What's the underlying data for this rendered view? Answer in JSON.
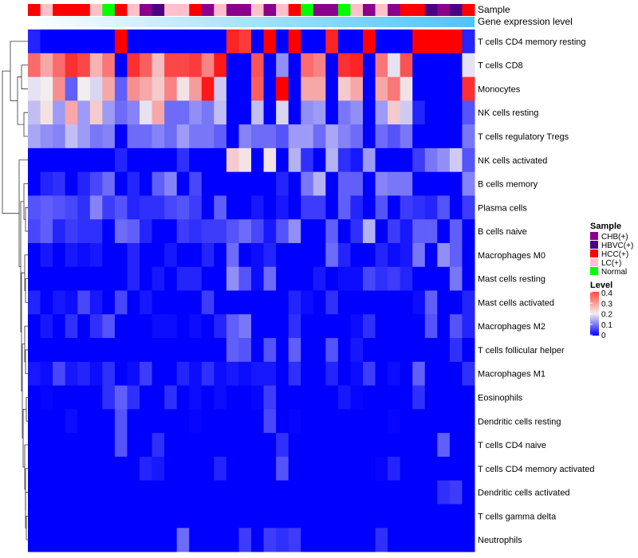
{
  "chart_data": {
    "type": "heatmap",
    "annotations": {
      "sample_label": "Sample",
      "gene_label": "Gene expression level",
      "samples": [
        "HCC(+)",
        "LC(+)",
        "HCC(+)",
        "HCC(+)",
        "HCC(+)",
        "LC(+)",
        "Normal",
        "HCC(+)",
        "LC(+)",
        "CHB(+)",
        "HBVC(+)",
        "LC(+)",
        "LC(+)",
        "HCC(+)",
        "CHB(+)",
        "LC(+)",
        "CHB(+)",
        "CHB(+)",
        "LC(+)",
        "CHB(+)",
        "LC(+)",
        "HCC(+)",
        "Normal",
        "CHB(+)",
        "CHB(+)",
        "Normal",
        "LC(+)",
        "CHB(+)",
        "LC(+)",
        "CHB(+)",
        "HCC(+)",
        "HCC(+)",
        "HBVC(+)",
        "CHB(+)",
        "HBVC(+)",
        "HCC(+)"
      ]
    },
    "rows": [
      "T cells CD4 memory resting",
      "T cells CD8",
      "Monocytes",
      "NK cells resting",
      "T cells regulatory  Tregs",
      "NK cells activated",
      "B cells memory",
      "Plasma cells",
      "B cells naive",
      "Macrophages M0",
      "Mast cells resting",
      "Mast cells activated",
      "Macrophages M2",
      "T cells follicular helper",
      "Macrophages M1",
      "Eosinophils",
      "Dendritic cells resting",
      "T cells CD4 naive",
      "T cells CD4 memory activated",
      "Dendritic cells activated",
      "T cells gamma delta",
      "Neutrophils"
    ],
    "values": [
      [
        0.03,
        0,
        0,
        0,
        0,
        0,
        0,
        0.4,
        0,
        0,
        0,
        0,
        0,
        0,
        0,
        0,
        0.37,
        0.35,
        0,
        0.4,
        0,
        0.4,
        0,
        0,
        0.37,
        0,
        0,
        0.4,
        0,
        0,
        0,
        0.4,
        0.4,
        0.4,
        0.4,
        0.03
      ],
      [
        0.31,
        0.26,
        0.31,
        0.36,
        0.34,
        0.25,
        0.3,
        0,
        0.36,
        0.32,
        0.24,
        0.34,
        0.34,
        0.35,
        0.29,
        0.38,
        0,
        0,
        0.33,
        0,
        0.12,
        0,
        0.31,
        0.29,
        0,
        0.36,
        0.37,
        0,
        0.3,
        0.19,
        0.33,
        0,
        0,
        0,
        0,
        0.19
      ],
      [
        0.19,
        0.2,
        0.28,
        0.08,
        0.2,
        0.18,
        0.26,
        0.08,
        0.28,
        0.26,
        0.23,
        0.29,
        0.21,
        0.27,
        0.38,
        0.17,
        0,
        0,
        0.32,
        0,
        0.4,
        0,
        0.26,
        0.26,
        0,
        0.23,
        0.26,
        0,
        0.26,
        0.3,
        0.21,
        0,
        0,
        0,
        0,
        0.36
      ],
      [
        0.16,
        0.21,
        0.13,
        0.26,
        0.13,
        0.23,
        0.13,
        0.09,
        0.11,
        0.19,
        0.26,
        0.09,
        0.09,
        0.12,
        0.1,
        0.16,
        0,
        0,
        0.16,
        0,
        0.18,
        0,
        0.12,
        0.13,
        0,
        0.1,
        0.12,
        0,
        0.13,
        0.23,
        0.17,
        0.03,
        0,
        0,
        0,
        0.07
      ],
      [
        0.14,
        0.12,
        0.11,
        0.16,
        0.13,
        0.1,
        0.11,
        0,
        0.09,
        0.09,
        0.11,
        0.09,
        0.13,
        0.1,
        0.1,
        0.08,
        0,
        0.11,
        0.09,
        0.09,
        0.07,
        0.13,
        0.13,
        0.09,
        0.14,
        0.11,
        0.09,
        0,
        0.09,
        0.07,
        0.1,
        0,
        0,
        0,
        0,
        0.1
      ],
      [
        0,
        0,
        0,
        0,
        0,
        0,
        0,
        0.03,
        0,
        0,
        0,
        0,
        0.04,
        0,
        0,
        0,
        0.23,
        0.21,
        0,
        0.21,
        0,
        0.15,
        0.04,
        0,
        0.15,
        0.04,
        0.02,
        0.13,
        0,
        0,
        0,
        0.05,
        0.1,
        0.12,
        0.17,
        0.07
      ],
      [
        0,
        0.03,
        0.04,
        0,
        0.03,
        0.06,
        0.09,
        0,
        0.03,
        0,
        0.08,
        0.11,
        0,
        0.06,
        0,
        0,
        0,
        0,
        0,
        0,
        0.03,
        0,
        0.1,
        0.15,
        0,
        0.08,
        0.08,
        0,
        0.11,
        0.1,
        0.1,
        0,
        0,
        0,
        0,
        0.11
      ],
      [
        0.07,
        0.08,
        0.07,
        0.06,
        0.04,
        0.11,
        0.05,
        0.07,
        0.03,
        0.04,
        0.04,
        0.06,
        0.07,
        0.05,
        0,
        0.08,
        0,
        0,
        0.02,
        0,
        0.02,
        0,
        0.05,
        0.05,
        0,
        0.08,
        0.03,
        0,
        0.07,
        0,
        0.05,
        0.04,
        0.03,
        0.07,
        0,
        0.05
      ],
      [
        0.06,
        0.08,
        0.03,
        0.05,
        0.04,
        0.04,
        0,
        0.09,
        0.08,
        0.03,
        0,
        0,
        0.05,
        0.04,
        0.05,
        0.05,
        0.07,
        0.09,
        0.06,
        0.02,
        0.07,
        0.12,
        0,
        0,
        0.08,
        0,
        0.04,
        0.15,
        0,
        0.05,
        0.02,
        0.08,
        0.08,
        0,
        0.08,
        0
      ],
      [
        0,
        0.02,
        0,
        0.02,
        0.01,
        0.02,
        0,
        0,
        0.03,
        0,
        0,
        0.02,
        0,
        0,
        0.03,
        0,
        0.09,
        0,
        0.01,
        0.03,
        0,
        0,
        0,
        0,
        0.09,
        0.03,
        0,
        0,
        0.03,
        0.01,
        0.02,
        0.1,
        0,
        0.12,
        0.08,
        0
      ],
      [
        0,
        0,
        0,
        0,
        0,
        0,
        0,
        0,
        0.03,
        0,
        0.02,
        0,
        0.03,
        0.03,
        0,
        0,
        0.12,
        0.07,
        0.01,
        0.09,
        0,
        0,
        0,
        0.02,
        0,
        0.01,
        0.01,
        0.06,
        0.04,
        0.05,
        0.03,
        0,
        0,
        0,
        0.1,
        0
      ],
      [
        0.03,
        0,
        0.02,
        0.01,
        0.06,
        0.02,
        0,
        0.06,
        0,
        0.02,
        0,
        0,
        0,
        0,
        0.05,
        0,
        0,
        0,
        0,
        0,
        0,
        0.03,
        0.01,
        0,
        0.04,
        0,
        0,
        0,
        0,
        0,
        0,
        0.01,
        0.08,
        0,
        0,
        0.03
      ],
      [
        0,
        0.02,
        0,
        0.04,
        0,
        0.04,
        0.07,
        0,
        0,
        0,
        0.01,
        0.01,
        0,
        0.01,
        0,
        0.03,
        0.08,
        0.1,
        0,
        0,
        0,
        0.04,
        0,
        0,
        0,
        0,
        0.01,
        0.04,
        0,
        0,
        0,
        0,
        0.07,
        0,
        0.07,
        0.03
      ],
      [
        0,
        0,
        0,
        0,
        0,
        0,
        0,
        0,
        0,
        0,
        0,
        0,
        0,
        0,
        0,
        0,
        0.08,
        0.07,
        0,
        0.07,
        0,
        0.08,
        0,
        0,
        0.07,
        0,
        0.02,
        0,
        0,
        0,
        0,
        0,
        0,
        0,
        0.04,
        0
      ],
      [
        0.02,
        0.01,
        0.06,
        0.02,
        0.03,
        0.01,
        0.04,
        0,
        0.01,
        0.05,
        0,
        0,
        0.03,
        0.01,
        0.04,
        0.01,
        0.02,
        0.01,
        0.02,
        0.02,
        0,
        0.04,
        0,
        0,
        0.03,
        0,
        0.01,
        0.05,
        0,
        0.01,
        0,
        0.08,
        0,
        0,
        0,
        0.04
      ],
      [
        0,
        0.005,
        0,
        0,
        0,
        0,
        0.04,
        0.08,
        0.04,
        0,
        0,
        0.04,
        0,
        0.01,
        0,
        0.01,
        0,
        0,
        0.005,
        0.05,
        0,
        0,
        0,
        0,
        0,
        0.02,
        0.005,
        0,
        0,
        0,
        0,
        0.04,
        0,
        0,
        0,
        0
      ],
      [
        0,
        0,
        0,
        0.01,
        0,
        0,
        0,
        0.07,
        0,
        0,
        0,
        0,
        0,
        0.005,
        0,
        0,
        0,
        0,
        0,
        0.06,
        0,
        0.005,
        0,
        0,
        0,
        0,
        0,
        0,
        0,
        0.005,
        0,
        0,
        0,
        0,
        0,
        0
      ],
      [
        0,
        0,
        0,
        0,
        0,
        0,
        0,
        0.07,
        0,
        0,
        0.04,
        0,
        0,
        0,
        0,
        0,
        0,
        0,
        0,
        0,
        0.04,
        0,
        0,
        0,
        0,
        0,
        0,
        0,
        0,
        0,
        0,
        0,
        0,
        0.08,
        0,
        0
      ],
      [
        0,
        0,
        0,
        0,
        0,
        0,
        0,
        0,
        0,
        0.03,
        0.02,
        0,
        0,
        0,
        0,
        0.03,
        0,
        0,
        0,
        0,
        0.07,
        0,
        0,
        0,
        0,
        0,
        0,
        0,
        0.005,
        0.03,
        0,
        0,
        0,
        0,
        0,
        0
      ],
      [
        0,
        0,
        0,
        0,
        0,
        0,
        0,
        0,
        0,
        0,
        0,
        0,
        0,
        0,
        0,
        0,
        0,
        0,
        0,
        0,
        0,
        0,
        0,
        0,
        0,
        0,
        0,
        0,
        0,
        0,
        0,
        0,
        0,
        0.04,
        0.05,
        0
      ],
      [
        0,
        0,
        0,
        0,
        0,
        0,
        0,
        0,
        0,
        0,
        0,
        0,
        0,
        0,
        0,
        0,
        0,
        0,
        0,
        0,
        0,
        0,
        0,
        0,
        0,
        0,
        0,
        0,
        0,
        0,
        0,
        0,
        0,
        0,
        0,
        0
      ],
      [
        0,
        0,
        0,
        0,
        0,
        0,
        0,
        0,
        0,
        0,
        0,
        0,
        0.09,
        0,
        0,
        0,
        0,
        0.05,
        0,
        0.05,
        0.04,
        0.05,
        0,
        0,
        0,
        0,
        0,
        0,
        0.04,
        0,
        0,
        0,
        0,
        0,
        0,
        0
      ]
    ],
    "color_scale": {
      "min": 0,
      "mid": 0.2,
      "max": 0.4,
      "low": "#0000ff",
      "midcolor": "#f2eef0",
      "high": "#ff0000"
    },
    "legend": {
      "sample_title": "Sample",
      "sample_items": [
        {
          "label": "CHB(+)",
          "color": "#8b008b"
        },
        {
          "label": "HBVC(+)",
          "color": "#4b0082"
        },
        {
          "label": "HCC(+)",
          "color": "#ff0000"
        },
        {
          "label": "LC(+)",
          "color": "#ffc0cb"
        },
        {
          "label": "Normal",
          "color": "#00ff00"
        }
      ],
      "level_title": "Level",
      "level_ticks": [
        "0.4",
        "0.3",
        "0.2",
        "0.1",
        "0"
      ],
      "placement": "right"
    },
    "gene_bar_colors": [
      "#ffffff",
      "#4fc3f7"
    ]
  }
}
